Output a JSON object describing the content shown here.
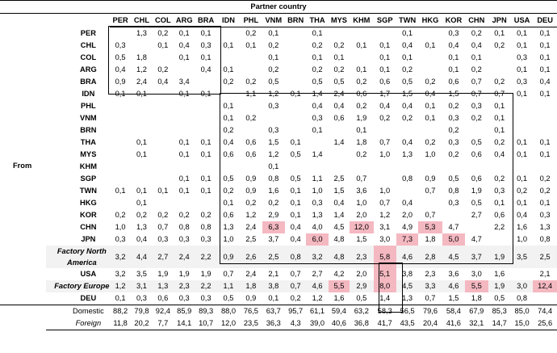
{
  "header": {
    "title": "Partner country",
    "from_label": "From"
  },
  "columns": [
    "PER",
    "CHL",
    "COL",
    "ARG",
    "BRA",
    "IDN",
    "PHL",
    "VNM",
    "BRN",
    "THA",
    "MYS",
    "KHM",
    "SGP",
    "TWN",
    "HKG",
    "KOR",
    "CHN",
    "JPN",
    "USA",
    "DEU"
  ],
  "rows": [
    {
      "label": "PER",
      "cells": [
        "",
        "1,3",
        "0,2",
        "0,1",
        "0,1",
        "",
        "0,2",
        "0,1",
        "",
        "0,1",
        "",
        "",
        "",
        "0,1",
        "",
        "0,3",
        "0,2",
        "0,1",
        "0,1",
        "0,1"
      ]
    },
    {
      "label": "CHL",
      "cells": [
        "0,3",
        "",
        "0,1",
        "0,4",
        "0,3",
        "0,1",
        "0,1",
        "0,2",
        "",
        "0,2",
        "0,2",
        "0,1",
        "0,1",
        "0,4",
        "0,1",
        "0,4",
        "0,4",
        "0,2",
        "0,1",
        "0,1"
      ]
    },
    {
      "label": "COL",
      "cells": [
        "0,5",
        "1,8",
        "",
        "0,1",
        "0,1",
        "",
        "",
        "0,1",
        "",
        "0,1",
        "0,1",
        "",
        "0,1",
        "0,1",
        "",
        "0,1",
        "0,1",
        "",
        "0,3",
        "0,1"
      ]
    },
    {
      "label": "ARG",
      "cells": [
        "0,4",
        "1,2",
        "0,2",
        "",
        "0,4",
        "0,1",
        "",
        "0,2",
        "",
        "0,2",
        "0,2",
        "0,1",
        "0,1",
        "0,2",
        "",
        "0,1",
        "0,2",
        "",
        "0,1",
        "0,1"
      ]
    },
    {
      "label": "BRA",
      "cells": [
        "0,9",
        "2,4",
        "0,4",
        "3,4",
        "",
        "0,2",
        "0,2",
        "0,5",
        "",
        "0,5",
        "0,5",
        "0,2",
        "0,6",
        "0,5",
        "0,2",
        "0,6",
        "0,7",
        "0,2",
        "0,3",
        "0,4"
      ]
    },
    {
      "label": "IDN",
      "cells": [
        "0,1",
        "0,1",
        "",
        "0,1",
        "0,1",
        "",
        "1,1",
        "1,2",
        "0,1",
        "1,4",
        "2,4",
        "0,6",
        "1,7",
        "1,5",
        "0,4",
        "1,5",
        "0,7",
        "0,7",
        "0,1",
        "0,1"
      ]
    },
    {
      "label": "PHL",
      "cells": [
        "",
        "",
        "",
        "",
        "",
        "0,1",
        "",
        "0,3",
        "",
        "0,4",
        "0,4",
        "0,2",
        "0,4",
        "0,4",
        "0,1",
        "0,2",
        "0,3",
        "0,1",
        "",
        ""
      ]
    },
    {
      "label": "VNM",
      "cells": [
        "",
        "",
        "",
        "",
        "",
        "0,1",
        "0,2",
        "",
        "",
        "0,3",
        "0,6",
        "1,9",
        "0,2",
        "0,2",
        "0,1",
        "0,3",
        "0,2",
        "0,1",
        "",
        ""
      ]
    },
    {
      "label": "BRN",
      "cells": [
        "",
        "",
        "",
        "",
        "",
        "0,2",
        "",
        "0,3",
        "",
        "0,1",
        "",
        "0,1",
        "",
        "",
        "",
        "0,2",
        "",
        "0,1",
        "",
        ""
      ]
    },
    {
      "label": "THA",
      "cells": [
        "",
        "0,1",
        "",
        "0,1",
        "0,1",
        "0,4",
        "0,6",
        "1,5",
        "0,1",
        "",
        "1,4",
        "1,8",
        "0,7",
        "0,4",
        "0,2",
        "0,3",
        "0,5",
        "0,2",
        "0,1",
        "0,1"
      ]
    },
    {
      "label": "MYS",
      "cells": [
        "",
        "0,1",
        "",
        "0,1",
        "0,1",
        "0,6",
        "0,6",
        "1,2",
        "0,5",
        "1,4",
        "",
        "0,2",
        "1,0",
        "1,3",
        "1,0",
        "0,2",
        "0,6",
        "0,4",
        "0,1",
        "0,1"
      ]
    },
    {
      "label": "KHM",
      "cells": [
        "",
        "",
        "",
        "",
        "",
        "",
        "",
        "0,1",
        "",
        "",
        "",
        "",
        "",
        "",
        "",
        "",
        "",
        "",
        "",
        ""
      ]
    },
    {
      "label": "SGP",
      "cells": [
        "",
        "",
        "",
        "0,1",
        "0,1",
        "0,5",
        "0,9",
        "0,8",
        "0,5",
        "1,1",
        "2,5",
        "0,7",
        "",
        "0,8",
        "0,9",
        "0,5",
        "0,6",
        "0,2",
        "0,1",
        "0,2"
      ]
    },
    {
      "label": "TWN",
      "cells": [
        "0,1",
        "0,1",
        "0,1",
        "0,1",
        "0,1",
        "0,2",
        "0,9",
        "1,6",
        "0,1",
        "1,0",
        "1,5",
        "3,6",
        "1,0",
        "",
        "0,7",
        "0,8",
        "1,9",
        "0,3",
        "0,2",
        "0,2"
      ]
    },
    {
      "label": "HKG",
      "cells": [
        "",
        "0,1",
        "",
        "",
        "",
        "0,1",
        "0,2",
        "0,2",
        "0,1",
        "0,3",
        "0,4",
        "1,0",
        "0,7",
        "0,4",
        "",
        "0,3",
        "0,5",
        "0,1",
        "0,1",
        "0,1"
      ]
    },
    {
      "label": "KOR",
      "cells": [
        "0,2",
        "0,2",
        "0,2",
        "0,2",
        "0,2",
        "0,6",
        "1,2",
        "2,9",
        "0,1",
        "1,3",
        "1,4",
        "2,0",
        "1,2",
        "2,0",
        "0,7",
        "",
        "2,7",
        "0,6",
        "0,4",
        "0,3"
      ]
    },
    {
      "label": "CHN",
      "cells": [
        "1,0",
        "1,3",
        "0,7",
        "0,8",
        "0,8",
        "1,3",
        "2,4",
        "6,3",
        "0,4",
        "4,0",
        "4,5",
        "12,0",
        "3,1",
        "4,9",
        "5,3",
        "4,7",
        "",
        "2,2",
        "1,6",
        "1,3"
      ]
    },
    {
      "label": "JPN",
      "cells": [
        "0,3",
        "0,4",
        "0,3",
        "0,3",
        "0,3",
        "1,0",
        "2,5",
        "3,7",
        "0,4",
        "6,0",
        "4,8",
        "1,5",
        "3,0",
        "7,3",
        "1,8",
        "5,0",
        "4,7",
        "",
        "1,0",
        "0,8"
      ]
    },
    {
      "label": "Factory North America",
      "cells": [
        "3,2",
        "4,4",
        "2,7",
        "2,4",
        "2,2",
        "0,9",
        "2,6",
        "2,5",
        "0,8",
        "3,2",
        "4,8",
        "2,3",
        "5,8",
        "4,6",
        "2,8",
        "4,5",
        "3,7",
        "1,9",
        "3,5",
        "2,5"
      ]
    },
    {
      "label": "USA",
      "cells": [
        "3,2",
        "3,5",
        "1,9",
        "1,9",
        "1,9",
        "0,7",
        "2,4",
        "2,1",
        "0,7",
        "2,7",
        "4,2",
        "2,0",
        "5,1",
        "3,8",
        "2,3",
        "3,6",
        "3,0",
        "1,6",
        "",
        "2,1"
      ]
    },
    {
      "label": "Factory Europe",
      "cells": [
        "1,2",
        "3,1",
        "1,3",
        "2,3",
        "2,2",
        "1,1",
        "1,8",
        "3,8",
        "0,7",
        "4,6",
        "5,5",
        "2,9",
        "8,0",
        "4,5",
        "3,3",
        "4,6",
        "5,5",
        "1,9",
        "3,0",
        "12,4"
      ]
    },
    {
      "label": "DEU",
      "cells": [
        "0,1",
        "0,3",
        "0,6",
        "0,3",
        "0,3",
        "0,5",
        "0,9",
        "0,1",
        "0,2",
        "1,2",
        "1,6",
        "0,5",
        "1,4",
        "1,3",
        "0,7",
        "1,5",
        "1,8",
        "0,5",
        "0,8",
        ""
      ]
    },
    {
      "label": "Domestic",
      "cells": [
        "88,2",
        "79,8",
        "92,4",
        "85,9",
        "89,3",
        "88,0",
        "76,5",
        "63,7",
        "95,7",
        "61,1",
        "59,4",
        "63,2",
        "58,3",
        "56,5",
        "79,6",
        "58,4",
        "67,9",
        "85,3",
        "85,0",
        "74,4"
      ]
    },
    {
      "label": "Foreign",
      "cells": [
        "11,8",
        "20,2",
        "7,7",
        "14,1",
        "10,7",
        "12,0",
        "23,5",
        "36,3",
        "4,3",
        "39,0",
        "40,6",
        "36,8",
        "41,7",
        "43,5",
        "20,4",
        "41,6",
        "32,1",
        "14,7",
        "15,0",
        "25,6"
      ]
    }
  ],
  "highlight_color": "#f4b8c1"
}
